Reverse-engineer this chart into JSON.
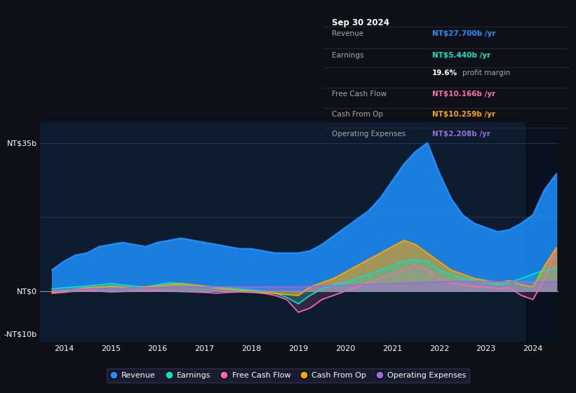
{
  "bg_color": "#0d1117",
  "plot_bg_color": "#0d1b2e",
  "grid_color": "#2a3a5a",
  "zero_line_color": "#8899aa",
  "series_colors": {
    "revenue": "#1e90ff",
    "earnings": "#00e5cc",
    "free_cash_flow": "#ff69b4",
    "cash_from_op": "#ffa500",
    "op_expenses": "#9370db"
  },
  "legend": [
    {
      "label": "Revenue",
      "color": "#1e90ff"
    },
    {
      "label": "Earnings",
      "color": "#00e5cc"
    },
    {
      "label": "Free Cash Flow",
      "color": "#ff69b4"
    },
    {
      "label": "Cash From Op",
      "color": "#ffa500"
    },
    {
      "label": "Operating Expenses",
      "color": "#9370db"
    }
  ],
  "tooltip": {
    "title": "Sep 30 2024",
    "rows": [
      {
        "label": "Revenue",
        "value": "NT$27.700b /yr",
        "value_color": "#1e90ff",
        "is_margin": false
      },
      {
        "label": "Earnings",
        "value": "NT$5.440b /yr",
        "value_color": "#00e5cc",
        "is_margin": false
      },
      {
        "label": "",
        "value": "19.6% profit margin",
        "value_color": "#ffffff",
        "is_margin": true
      },
      {
        "label": "Free Cash Flow",
        "value": "NT$10.166b /yr",
        "value_color": "#ff69b4",
        "is_margin": false
      },
      {
        "label": "Cash From Op",
        "value": "NT$10.259b /yr",
        "value_color": "#ffa500",
        "is_margin": false
      },
      {
        "label": "Operating Expenses",
        "value": "NT$2.208b /yr",
        "value_color": "#9370db",
        "is_margin": false
      }
    ]
  },
  "t": [
    2013.75,
    2014.0,
    2014.25,
    2014.5,
    2014.75,
    2015.0,
    2015.25,
    2015.5,
    2015.75,
    2016.0,
    2016.25,
    2016.5,
    2016.75,
    2017.0,
    2017.25,
    2017.5,
    2017.75,
    2018.0,
    2018.25,
    2018.5,
    2018.75,
    2019.0,
    2019.25,
    2019.5,
    2019.75,
    2020.0,
    2020.25,
    2020.5,
    2020.75,
    2021.0,
    2021.25,
    2021.5,
    2021.75,
    2022.0,
    2022.25,
    2022.5,
    2022.75,
    2023.0,
    2023.25,
    2023.5,
    2023.75,
    2024.0,
    2024.25,
    2024.5
  ],
  "revenue": [
    5,
    7,
    8.5,
    9,
    10.5,
    11,
    11.5,
    11,
    10.5,
    11.5,
    12,
    12.5,
    12,
    11.5,
    11,
    10.5,
    10,
    10,
    9.5,
    9,
    9,
    9,
    9.5,
    11,
    13,
    15,
    17,
    19,
    22,
    26,
    30,
    33,
    35,
    28,
    22,
    18,
    16,
    15,
    14,
    14.5,
    16,
    18,
    24,
    27.7
  ],
  "earnings": [
    0.5,
    0.8,
    1.0,
    1.2,
    1.5,
    1.8,
    1.5,
    1.2,
    1.0,
    1.5,
    2.0,
    1.8,
    1.5,
    1.2,
    1.0,
    0.8,
    0.5,
    0.3,
    0,
    -0.5,
    -1.5,
    -3,
    -1,
    0.5,
    1.5,
    2,
    3,
    4,
    5,
    6,
    7,
    7.5,
    7,
    5,
    4,
    3,
    2.5,
    2,
    1.5,
    2,
    3,
    4,
    5,
    5.44
  ],
  "free_cash_flow": [
    -0.5,
    -0.3,
    0,
    0.2,
    0,
    -0.2,
    -0.1,
    0,
    0.1,
    0.2,
    0,
    -0.1,
    -0.2,
    -0.3,
    -0.5,
    -0.3,
    -0.2,
    -0.3,
    -0.5,
    -1.0,
    -2.0,
    -5,
    -4,
    -2,
    -1,
    0,
    1,
    2,
    3,
    4,
    5,
    6,
    5,
    3,
    2,
    1.5,
    1,
    1,
    0.5,
    0.8,
    -1,
    -2,
    3,
    10.166
  ],
  "cash_from_op": [
    -0.3,
    0,
    0.5,
    0.8,
    1.0,
    1.2,
    1.0,
    0.8,
    1.0,
    1.2,
    1.5,
    1.8,
    1.5,
    1.2,
    0.8,
    0.5,
    0.2,
    0,
    -0.3,
    -0.5,
    -0.8,
    -1.0,
    1.0,
    2.0,
    3.0,
    4.5,
    6.0,
    7.5,
    9.0,
    10.5,
    12,
    11,
    9,
    7,
    5,
    4,
    3,
    2.5,
    2,
    2.5,
    1.5,
    1.0,
    6,
    10.259
  ],
  "op_expenses": [
    0.2,
    0.3,
    0.4,
    0.5,
    0.6,
    0.7,
    0.7,
    0.8,
    0.8,
    0.9,
    0.9,
    1.0,
    1.0,
    1.0,
    1.0,
    1.0,
    1.0,
    1.0,
    1.0,
    1.0,
    1.0,
    1.0,
    1.1,
    1.2,
    1.3,
    1.4,
    1.5,
    1.6,
    1.7,
    1.8,
    1.9,
    2.0,
    2.1,
    2.2,
    2.3,
    2.3,
    2.3,
    2.3,
    2.2,
    2.2,
    2.2,
    2.2,
    2.2,
    2.208
  ]
}
